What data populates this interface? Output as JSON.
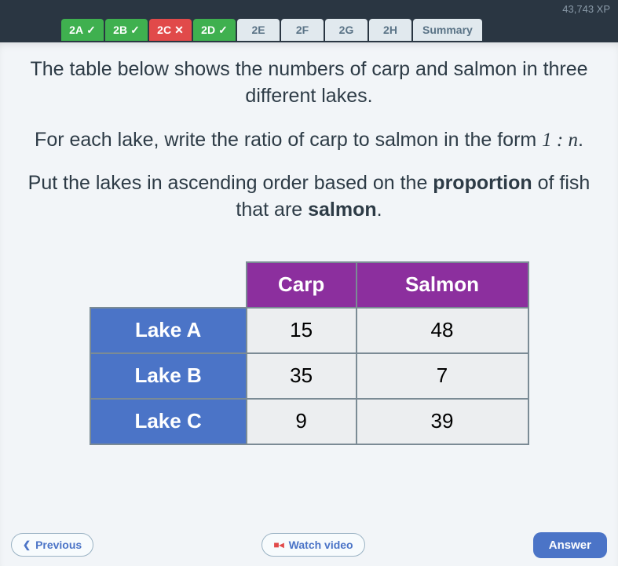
{
  "topbar": {
    "xp": "43,743 XP"
  },
  "tabs": [
    {
      "label": "2A",
      "state": "green",
      "mark": "✓"
    },
    {
      "label": "2B",
      "state": "green",
      "mark": "✓"
    },
    {
      "label": "2C",
      "state": "red",
      "mark": "✕"
    },
    {
      "label": "2D",
      "state": "green",
      "mark": "✓"
    },
    {
      "label": "2E",
      "state": "gray",
      "mark": ""
    },
    {
      "label": "2F",
      "state": "gray",
      "mark": ""
    },
    {
      "label": "2G",
      "state": "gray",
      "mark": ""
    },
    {
      "label": "2H",
      "state": "gray",
      "mark": ""
    }
  ],
  "summary_label": "Summary",
  "question": {
    "p1": "The table below shows the numbers of carp and salmon in three different lakes.",
    "p2a": "For each lake, write the ratio of carp to salmon in the form ",
    "p2b": "1 : n",
    "p2c": ".",
    "p3a": "Put the lakes in ascending order based on the ",
    "p3b": "proportion",
    "p3c": " of fish that are ",
    "p3d": "salmon",
    "p3e": "."
  },
  "table": {
    "headers": {
      "col1": "Carp",
      "col2": "Salmon"
    },
    "rows": [
      {
        "label": "Lake A",
        "carp": "15",
        "salmon": "48"
      },
      {
        "label": "Lake B",
        "carp": "35",
        "salmon": "7"
      },
      {
        "label": "Lake C",
        "carp": "9",
        "salmon": "39"
      }
    ],
    "header_bg": "#8c2f9e",
    "rowlabel_bg": "#4b74c7",
    "cell_bg": "#eceef0",
    "border_color": "#7b8b95"
  },
  "buttons": {
    "previous": "Previous",
    "watch": "Watch video",
    "answer": "Answer"
  }
}
